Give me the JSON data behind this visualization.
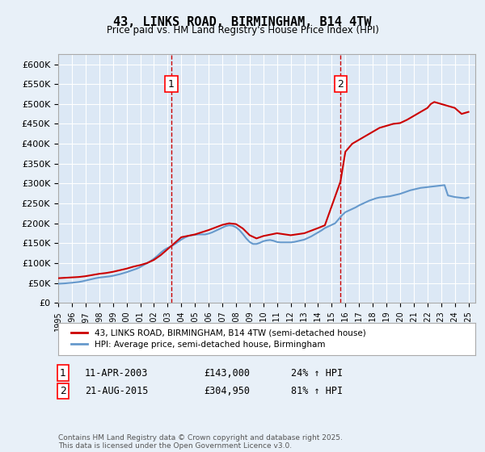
{
  "title": "43, LINKS ROAD, BIRMINGHAM, B14 4TW",
  "subtitle": "Price paid vs. HM Land Registry's House Price Index (HPI)",
  "xlabel": "",
  "ylabel": "",
  "ylim": [
    0,
    625000
  ],
  "yticks": [
    0,
    50000,
    100000,
    150000,
    200000,
    250000,
    300000,
    350000,
    400000,
    450000,
    500000,
    550000,
    600000
  ],
  "ytick_labels": [
    "£0",
    "£50K",
    "£100K",
    "£150K",
    "£200K",
    "£250K",
    "£300K",
    "£350K",
    "£400K",
    "£450K",
    "£500K",
    "£550K",
    "£600K"
  ],
  "bg_color": "#e8f0f8",
  "plot_bg": "#dce8f5",
  "grid_color": "#ffffff",
  "red_line_color": "#cc0000",
  "blue_line_color": "#6699cc",
  "vline_color": "#cc0000",
  "marker1_year": 2003.27,
  "marker2_year": 2015.64,
  "purchase1_price": 143000,
  "purchase2_price": 304950,
  "legend_label_red": "43, LINKS ROAD, BIRMINGHAM, B14 4TW (semi-detached house)",
  "legend_label_blue": "HPI: Average price, semi-detached house, Birmingham",
  "annotation1_box": "1",
  "annotation2_box": "2",
  "sale1_date": "11-APR-2003",
  "sale1_price_str": "£143,000",
  "sale1_hpi": "24% ↑ HPI",
  "sale2_date": "21-AUG-2015",
  "sale2_price_str": "£304,950",
  "sale2_hpi": "81% ↑ HPI",
  "footer": "Contains HM Land Registry data © Crown copyright and database right 2025.\nThis data is licensed under the Open Government Licence v3.0.",
  "hpi_years": [
    1995,
    1995.25,
    1995.5,
    1995.75,
    1996,
    1996.25,
    1996.5,
    1996.75,
    1997,
    1997.25,
    1997.5,
    1997.75,
    1998,
    1998.25,
    1998.5,
    1998.75,
    1999,
    1999.25,
    1999.5,
    1999.75,
    2000,
    2000.25,
    2000.5,
    2000.75,
    2001,
    2001.25,
    2001.5,
    2001.75,
    2002,
    2002.25,
    2002.5,
    2002.75,
    2003,
    2003.25,
    2003.5,
    2003.75,
    2004,
    2004.25,
    2004.5,
    2004.75,
    2005,
    2005.25,
    2005.5,
    2005.75,
    2006,
    2006.25,
    2006.5,
    2006.75,
    2007,
    2007.25,
    2007.5,
    2007.75,
    2008,
    2008.25,
    2008.5,
    2008.75,
    2009,
    2009.25,
    2009.5,
    2009.75,
    2010,
    2010.25,
    2010.5,
    2010.75,
    2011,
    2011.25,
    2011.5,
    2011.75,
    2012,
    2012.25,
    2012.5,
    2012.75,
    2013,
    2013.25,
    2013.5,
    2013.75,
    2014,
    2014.25,
    2014.5,
    2014.75,
    2015,
    2015.25,
    2015.5,
    2015.75,
    2016,
    2016.25,
    2016.5,
    2016.75,
    2017,
    2017.25,
    2017.5,
    2017.75,
    2018,
    2018.25,
    2018.5,
    2018.75,
    2019,
    2019.25,
    2019.5,
    2019.75,
    2020,
    2020.25,
    2020.5,
    2020.75,
    2021,
    2021.25,
    2021.5,
    2021.75,
    2022,
    2022.25,
    2022.5,
    2022.75,
    2023,
    2023.25,
    2023.5,
    2023.75,
    2024,
    2024.25,
    2024.5,
    2024.75,
    2025
  ],
  "hpi_values": [
    48000,
    48500,
    49000,
    49800,
    50500,
    51500,
    52500,
    54000,
    56000,
    58000,
    60000,
    62000,
    63500,
    64500,
    65500,
    66500,
    68000,
    70000,
    72000,
    74500,
    77000,
    80000,
    83000,
    86000,
    90000,
    95000,
    100000,
    105000,
    111000,
    118000,
    126000,
    133000,
    138000,
    142000,
    147000,
    153000,
    159000,
    164000,
    168000,
    170000,
    171000,
    172000,
    172000,
    172000,
    174000,
    177000,
    181000,
    185000,
    189000,
    193000,
    195000,
    194000,
    190000,
    183000,
    173000,
    162000,
    153000,
    148000,
    148000,
    151000,
    155000,
    157000,
    158000,
    156000,
    153000,
    152000,
    152000,
    152000,
    152000,
    153000,
    155000,
    157000,
    159000,
    163000,
    167000,
    172000,
    177000,
    182000,
    188000,
    192000,
    196000,
    200000,
    210000,
    220000,
    228000,
    232000,
    236000,
    240000,
    245000,
    249000,
    253000,
    257000,
    260000,
    263000,
    265000,
    266000,
    267000,
    268000,
    270000,
    272000,
    274000,
    277000,
    280000,
    283000,
    285000,
    287000,
    289000,
    290000,
    291000,
    292000,
    293000,
    294000,
    295000,
    296000,
    270000,
    268000,
    266000,
    265000,
    264000,
    263000,
    265000
  ],
  "red_years": [
    1995,
    1995.5,
    1996,
    1996.5,
    1997,
    1997.5,
    1998,
    1998.5,
    1999,
    1999.5,
    2000,
    2000.5,
    2001,
    2001.5,
    2002,
    2002.5,
    2003.27,
    2004,
    2005,
    2006,
    2007,
    2007.5,
    2008,
    2008.5,
    2009,
    2009.5,
    2010,
    2011,
    2012,
    2013,
    2014,
    2014.5,
    2015.64,
    2016,
    2016.5,
    2017,
    2017.5,
    2018,
    2018.5,
    2019,
    2019.5,
    2020,
    2020.5,
    2021,
    2021.5,
    2022,
    2022.25,
    2022.5,
    2023,
    2023.5,
    2024,
    2024.5,
    2025
  ],
  "red_values": [
    62000,
    63000,
    64000,
    65000,
    67000,
    70000,
    73000,
    75000,
    78000,
    82000,
    86000,
    91000,
    95000,
    100000,
    108000,
    120000,
    143000,
    165000,
    172000,
    183000,
    196000,
    200000,
    198000,
    187000,
    170000,
    162000,
    168000,
    175000,
    170000,
    175000,
    188000,
    195000,
    304950,
    380000,
    400000,
    410000,
    420000,
    430000,
    440000,
    445000,
    450000,
    452000,
    460000,
    470000,
    480000,
    490000,
    500000,
    505000,
    500000,
    495000,
    490000,
    475000,
    480000
  ]
}
